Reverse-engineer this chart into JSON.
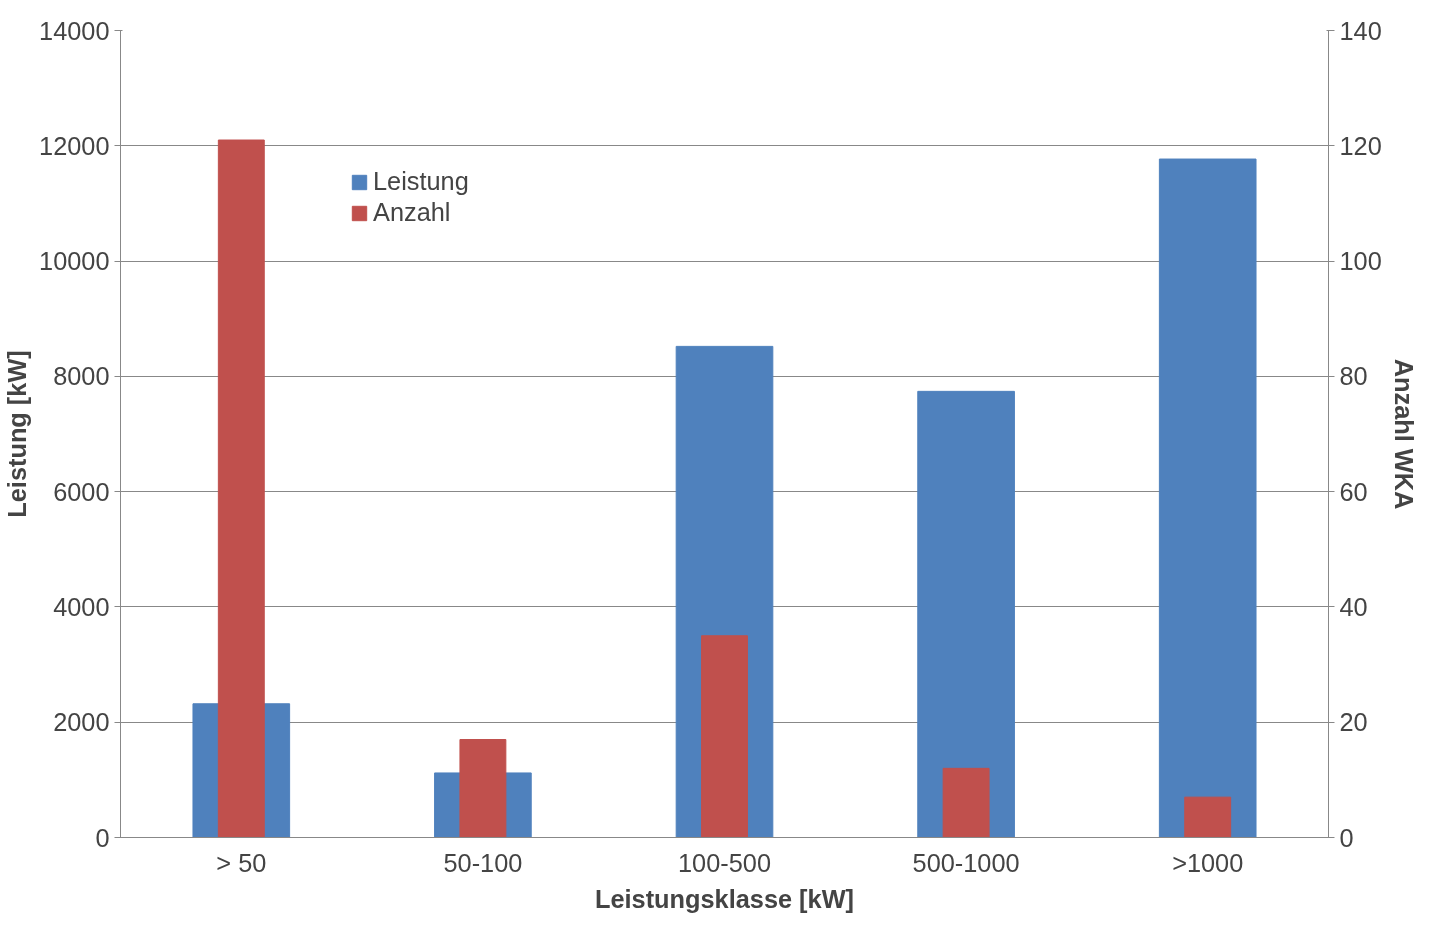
{
  "chart_data": {
    "type": "bar",
    "xlabel": "Leistungsklasse [kW]",
    "ylabel": "Leistung [kW]",
    "y2label": "Anzahl WKA",
    "categories": [
      "> 50",
      "50-100",
      "100-500",
      "500-1000",
      ">1000"
    ],
    "series": [
      {
        "name": "Leistung",
        "color": "#4f81bd",
        "values": [
          2320,
          1120,
          8520,
          7740,
          11770
        ]
      },
      {
        "name": "Anzahl",
        "color": "#c0504d",
        "axis": "y2",
        "values": [
          121,
          17,
          35,
          12,
          7
        ]
      }
    ],
    "ylim": [
      0,
      14000
    ],
    "yticks": [
      0,
      2000,
      4000,
      6000,
      8000,
      10000,
      12000,
      14000
    ],
    "y2lim": [
      0,
      140
    ],
    "y2ticks": [
      0,
      20,
      40,
      60,
      80,
      100,
      120,
      140
    ],
    "grid": "y",
    "legend": "top left"
  }
}
